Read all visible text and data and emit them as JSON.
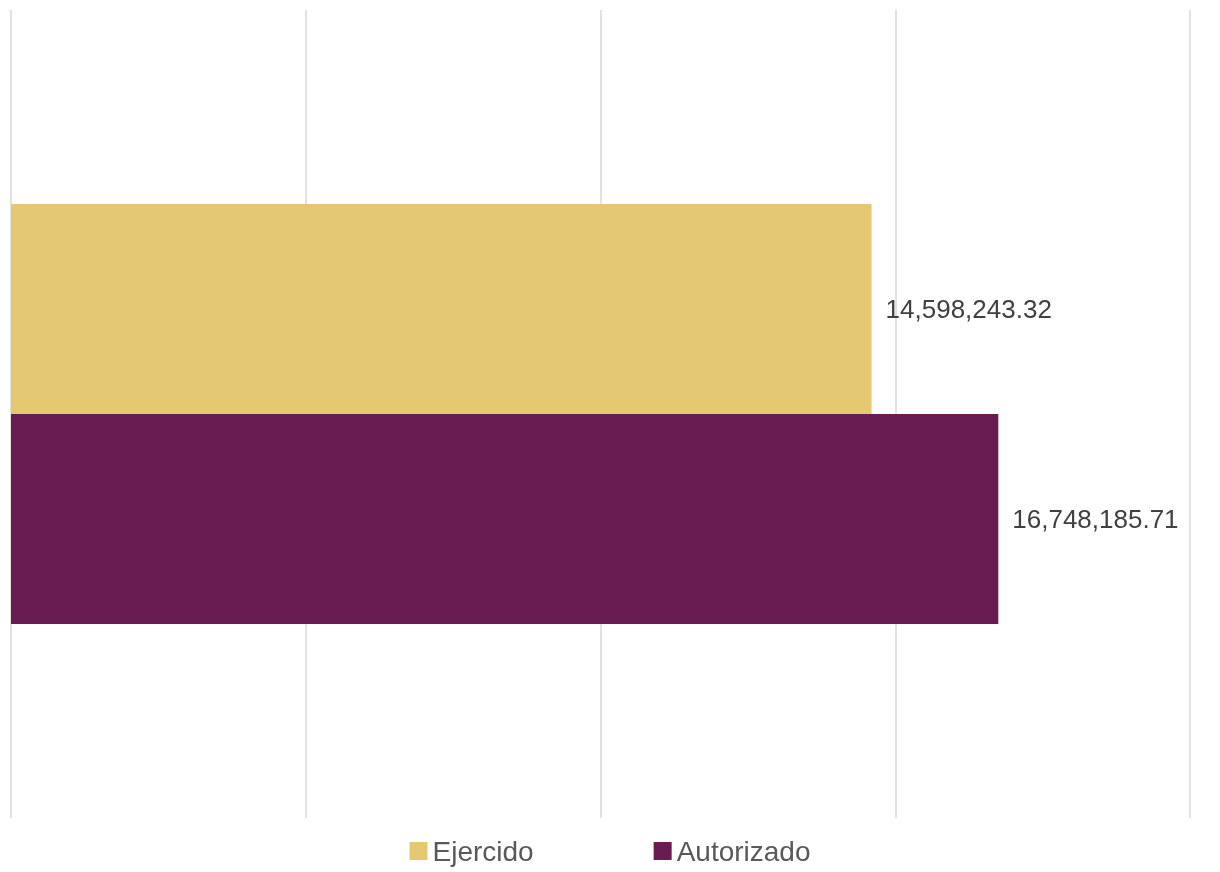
{
  "chart_data": {
    "type": "bar",
    "orientation": "horizontal",
    "categories": [
      null
    ],
    "series": [
      {
        "name": "Ejercido",
        "color": "#e4c972",
        "values": [
          14598243.32
        ],
        "value_labels": [
          "14,598,243.32"
        ]
      },
      {
        "name": "Autorizado",
        "color": "#681c52",
        "values": [
          16748185.71
        ],
        "value_labels": [
          "16,748,185.71"
        ]
      }
    ],
    "xlim": [
      0,
      20000000
    ],
    "xticks": [
      {
        "value": 0,
        "label": null
      },
      {
        "value": 5000000,
        "label": null
      },
      {
        "value": 10000000,
        "label": null
      },
      {
        "value": 15000000,
        "label": null
      },
      {
        "value": 20000000,
        "label": null
      }
    ],
    "grid": "x",
    "legend": "bottom"
  }
}
